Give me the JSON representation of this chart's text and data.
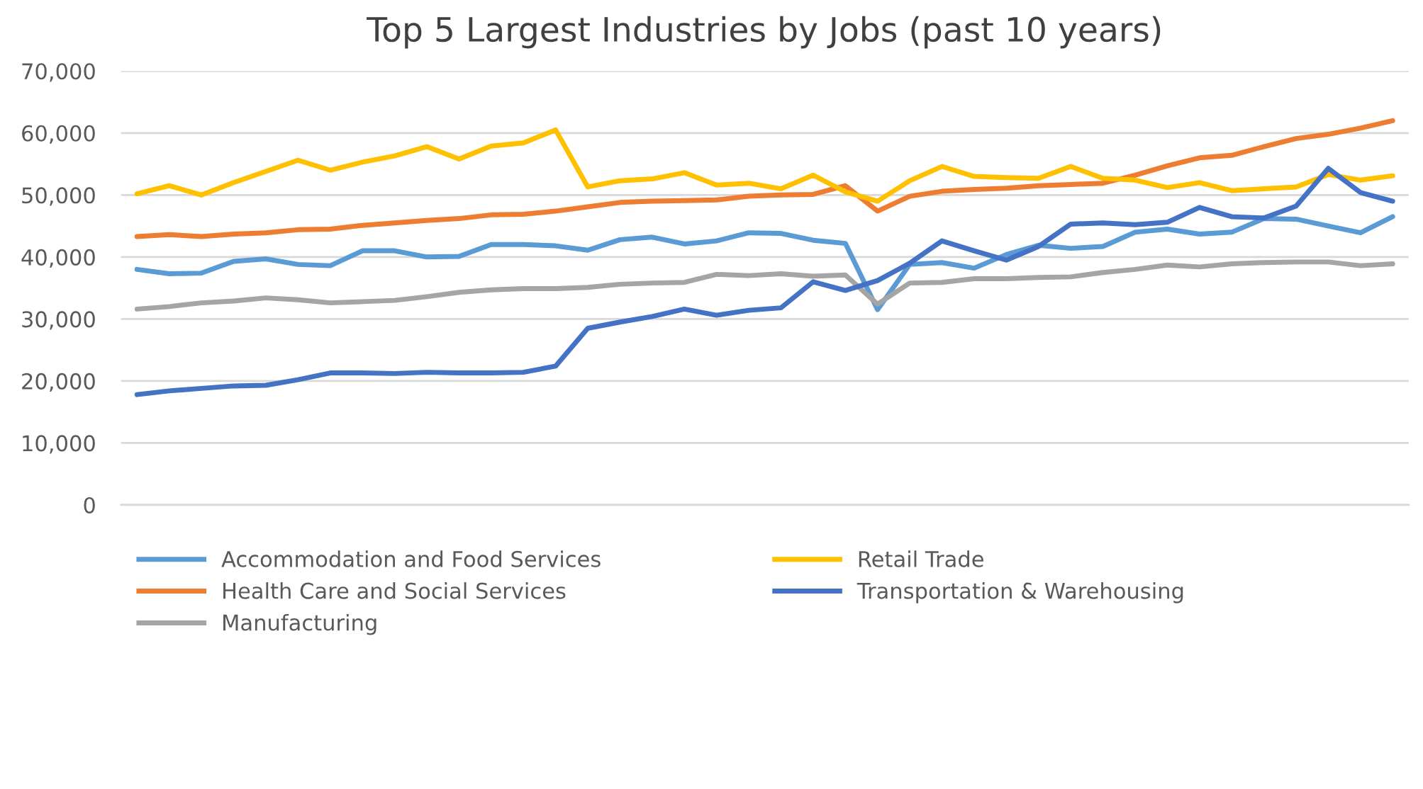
{
  "chart_data": {
    "type": "line",
    "title": "Top 5 Largest Industries by Jobs (past 10 years)",
    "categories": [
      null,
      null,
      null,
      null,
      null,
      null,
      null,
      null,
      null,
      null,
      null,
      null,
      null,
      null,
      null,
      null,
      null,
      null,
      null,
      null,
      null,
      null,
      null,
      null,
      null,
      null,
      null,
      null,
      null,
      null,
      null,
      null,
      null,
      null,
      null,
      null,
      null,
      null,
      null,
      null
    ],
    "ylim": [
      0,
      70000
    ],
    "yticks": [
      {
        "value": 0,
        "label": "0"
      },
      {
        "value": 10000,
        "label": "10,000"
      },
      {
        "value": 20000,
        "label": "20,000"
      },
      {
        "value": 30000,
        "label": "30,000"
      },
      {
        "value": 40000,
        "label": "40,000"
      },
      {
        "value": 50000,
        "label": "50,000"
      },
      {
        "value": 60000,
        "label": "60,000"
      },
      {
        "value": 70000,
        "label": "70,000"
      }
    ],
    "grid": "y",
    "legend": "bottom",
    "marker": "none",
    "line_style": "solid",
    "series": [
      {
        "name": "Accommodation and Food Services",
        "color": "#5b9bd5",
        "values": [
          38000,
          37300,
          37400,
          39300,
          39700,
          38800,
          38600,
          41000,
          41000,
          40000,
          40100,
          42000,
          42000,
          41800,
          41100,
          42800,
          43200,
          42100,
          42600,
          43900,
          43800,
          42700,
          42200,
          31500,
          38800,
          39100,
          38200,
          40400,
          41900,
          41400,
          41700,
          44000,
          44500,
          43700,
          44000,
          46200,
          46100,
          45000,
          43900,
          46500
        ]
      },
      {
        "name": "Health Care and Social Services",
        "color": "#ed7d31",
        "values": [
          43300,
          43600,
          43300,
          43700,
          43900,
          44400,
          44500,
          45100,
          45500,
          45900,
          46200,
          46800,
          46900,
          47400,
          48100,
          48800,
          49000,
          49100,
          49200,
          49800,
          50000,
          50100,
          51500,
          47400,
          49800,
          50600,
          50900,
          51100,
          51500,
          51700,
          51900,
          53200,
          54700,
          56000,
          56400,
          57800,
          59100,
          59800,
          60800,
          62000
        ]
      },
      {
        "name": "Manufacturing",
        "color": "#a5a5a5",
        "values": [
          31600,
          32000,
          32600,
          32900,
          33400,
          33100,
          32600,
          32800,
          33000,
          33600,
          34300,
          34700,
          34900,
          34900,
          35100,
          35600,
          35800,
          35900,
          37200,
          37000,
          37300,
          36900,
          37100,
          32400,
          35800,
          35900,
          36500,
          36500,
          36700,
          36800,
          37500,
          38000,
          38700,
          38400,
          38900,
          39100,
          39200,
          39200,
          38600,
          38900
        ]
      },
      {
        "name": "Retail Trade",
        "color": "#ffc000",
        "values": [
          50200,
          51500,
          50000,
          52000,
          53800,
          55600,
          54000,
          55300,
          56300,
          57800,
          55800,
          57900,
          58400,
          60500,
          51300,
          52300,
          52600,
          53600,
          51600,
          51900,
          51000,
          53200,
          50500,
          49000,
          52300,
          54600,
          53000,
          52800,
          52700,
          54600,
          52700,
          52400,
          51200,
          52000,
          50700,
          51000,
          51300,
          53300,
          52400,
          53100
        ]
      },
      {
        "name": "Transportation & Warehousing",
        "color": "#4472c4",
        "values": [
          17800,
          18400,
          18800,
          19200,
          19300,
          20200,
          21300,
          21300,
          21200,
          21400,
          21300,
          21300,
          21400,
          22400,
          28500,
          29500,
          30400,
          31600,
          30600,
          31400,
          31800,
          36000,
          34600,
          36200,
          39000,
          42600,
          41000,
          39500,
          41700,
          45300,
          45500,
          45200,
          45600,
          48000,
          46500,
          46300,
          48200,
          54300,
          50400,
          49000
        ]
      }
    ]
  }
}
